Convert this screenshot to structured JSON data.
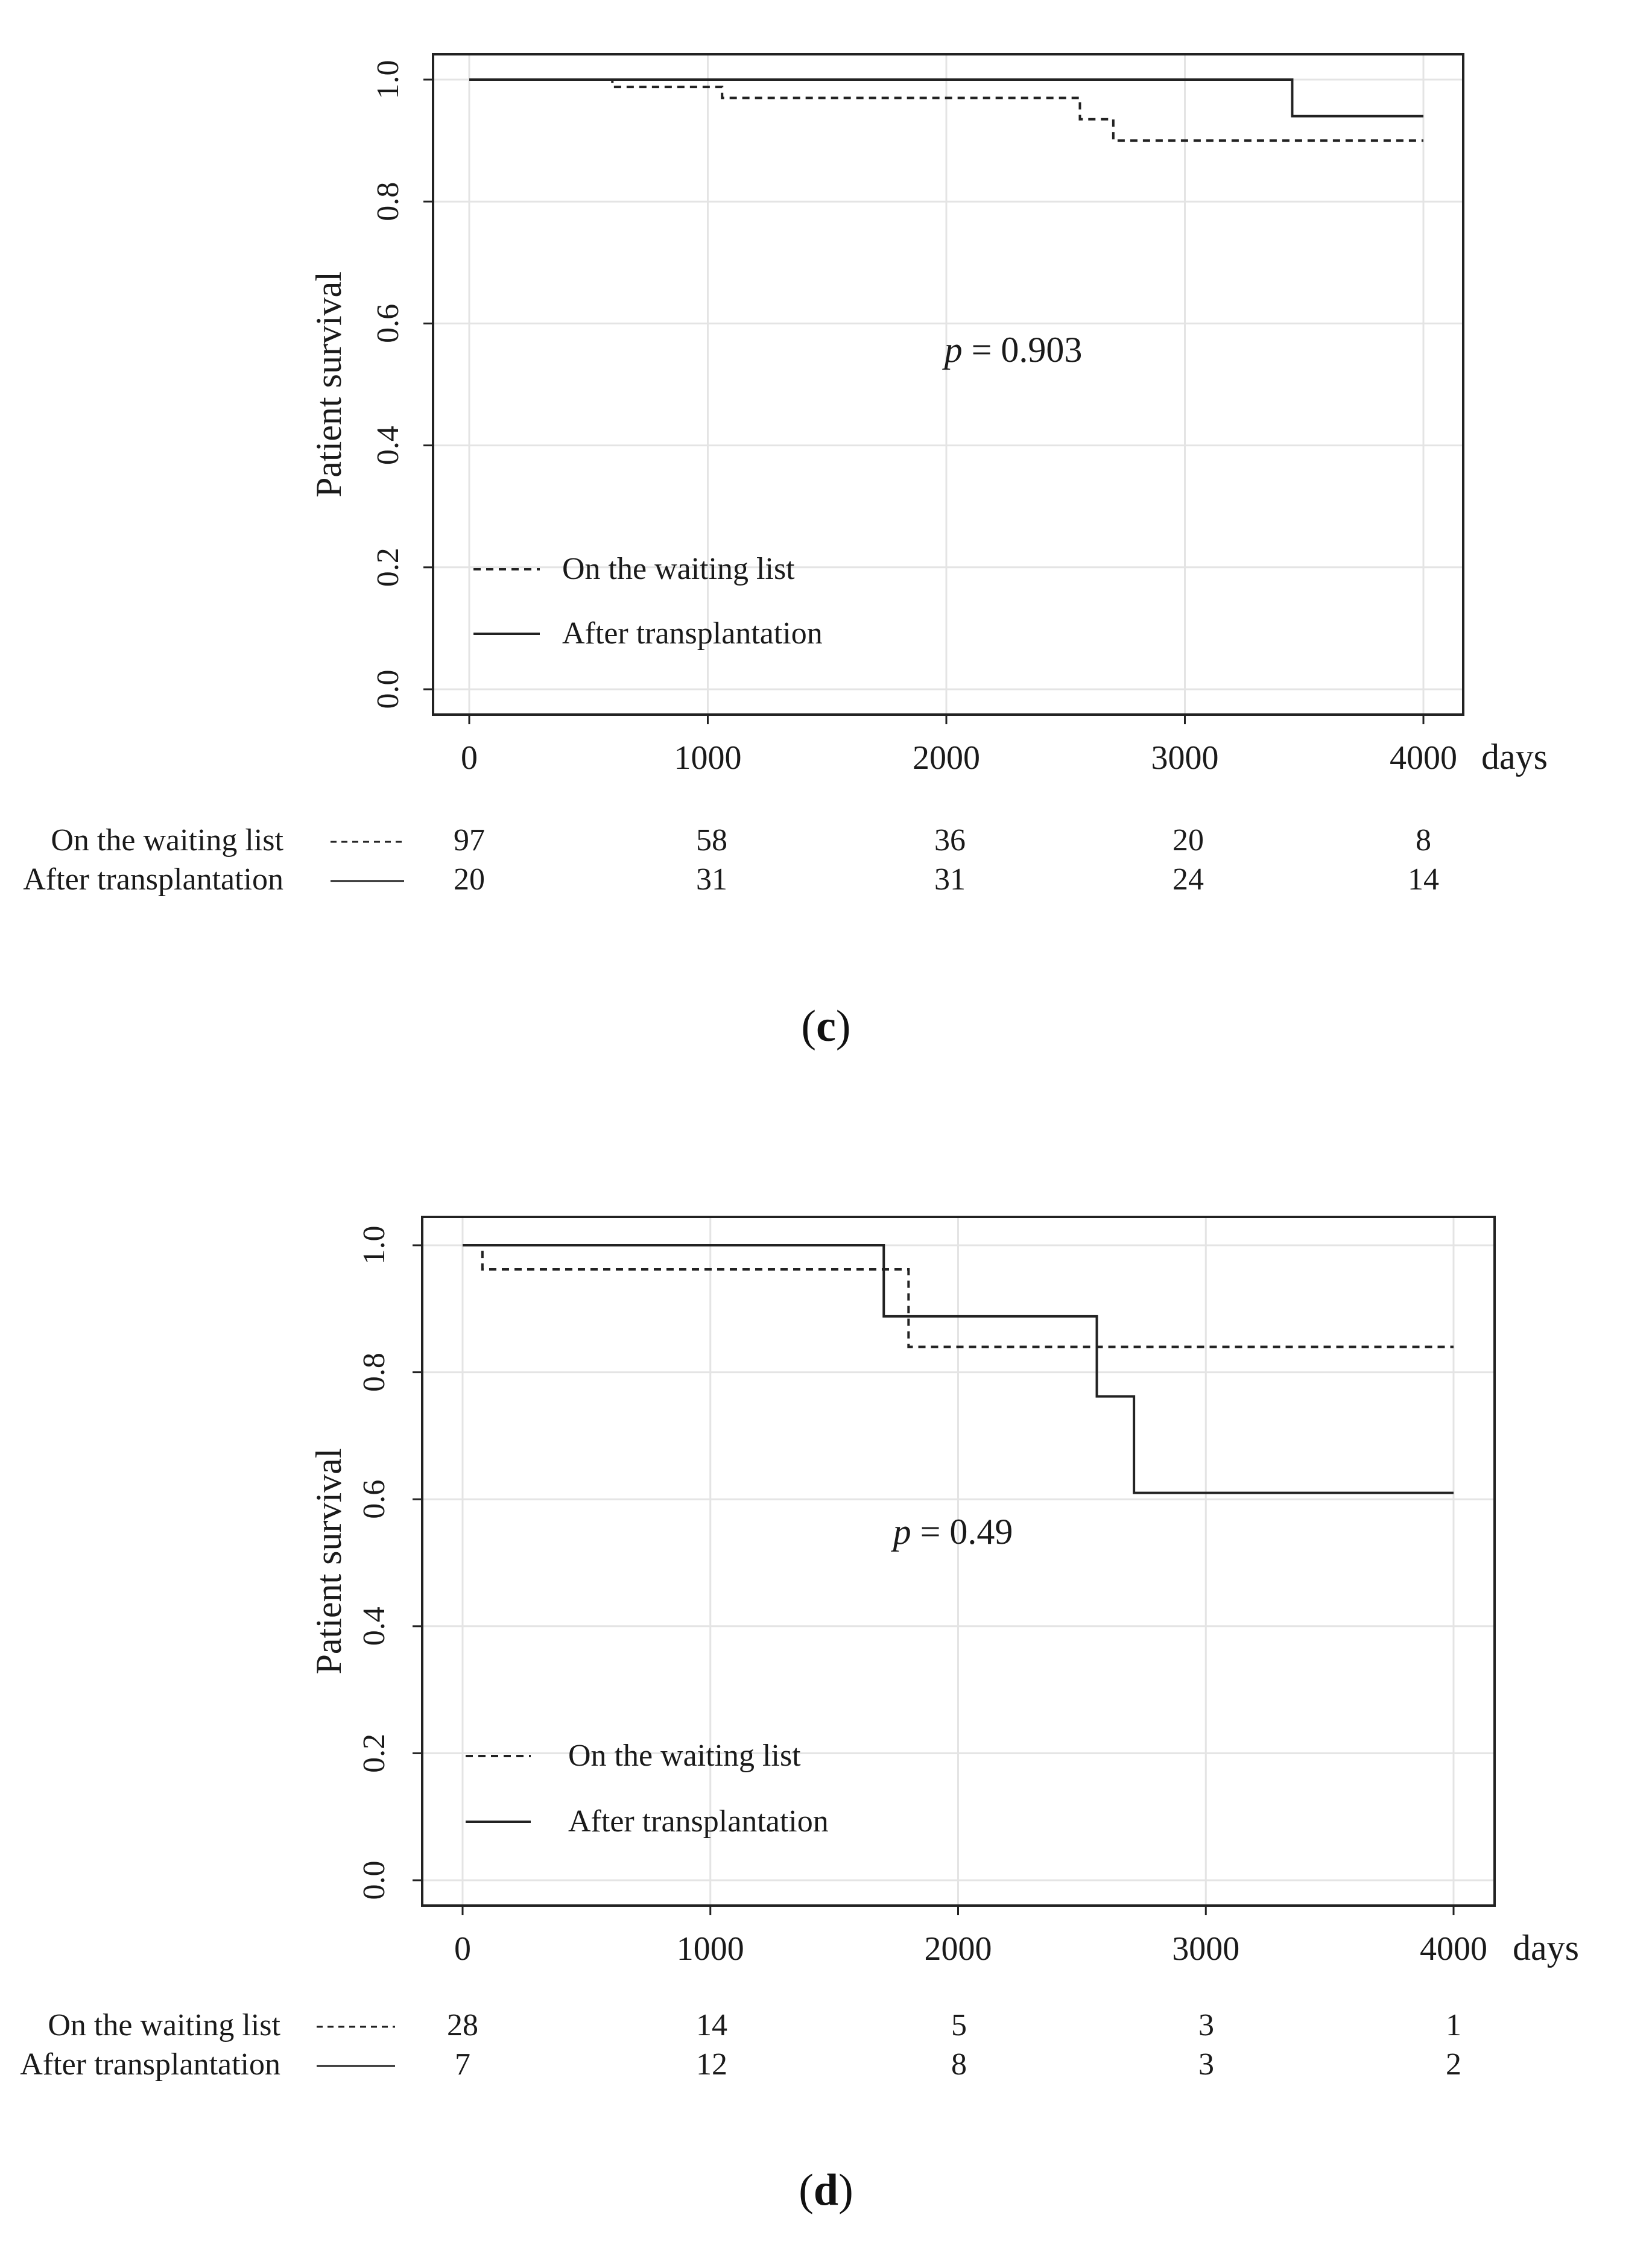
{
  "chart_data": [
    {
      "type": "line",
      "panel_label": "c",
      "xlabel": "days",
      "ylabel": "Patient survival",
      "xlim": [
        0,
        4000
      ],
      "ylim": [
        0,
        1.0
      ],
      "x_ticks": [
        0,
        1000,
        2000,
        3000,
        4000
      ],
      "y_ticks": [
        "0.0",
        "0.2",
        "0.4",
        "0.6",
        "0.8",
        "1.0"
      ],
      "grid": true,
      "legend_position": "bottom-left",
      "annotation": {
        "p_symbol": "p",
        "text": " = 0.903"
      },
      "series": [
        {
          "name": "On the waiting list",
          "style": "dashed",
          "steps": [
            [
              0,
              1.0
            ],
            [
              600,
              0.988
            ],
            [
              1060,
              0.97
            ],
            [
              2560,
              0.935
            ],
            [
              2700,
              0.9
            ],
            [
              4000,
              0.9
            ]
          ]
        },
        {
          "name": "After transplantation",
          "style": "solid",
          "steps": [
            [
              0,
              1.0
            ],
            [
              3450,
              0.94
            ],
            [
              4000,
              0.94
            ]
          ]
        }
      ],
      "risk_table": {
        "times": [
          0,
          1000,
          2000,
          3000,
          4000
        ],
        "rows": [
          {
            "label": "On the waiting list",
            "style": "dashed",
            "values": [
              "97",
              "58",
              "36",
              "20",
              "8"
            ]
          },
          {
            "label": "After transplantation",
            "style": "solid",
            "values": [
              "20",
              "31",
              "31",
              "24",
              "14"
            ]
          }
        ]
      }
    },
    {
      "type": "line",
      "panel_label": "d",
      "xlabel": "days",
      "ylabel": "Patient survival",
      "xlim": [
        0,
        4000
      ],
      "ylim": [
        0,
        1.0
      ],
      "x_ticks": [
        0,
        1000,
        2000,
        3000,
        4000
      ],
      "y_ticks": [
        "0.0",
        "0.2",
        "0.4",
        "0.6",
        "0.8",
        "1.0"
      ],
      "grid": true,
      "legend_position": "bottom-left",
      "annotation": {
        "p_symbol": "p",
        "text": " = 0.49"
      },
      "series": [
        {
          "name": "On the waiting list",
          "style": "dashed",
          "steps": [
            [
              0,
              1.0
            ],
            [
              80,
              0.962
            ],
            [
              1800,
              0.84
            ],
            [
              4000,
              0.84
            ]
          ]
        },
        {
          "name": "After transplantation",
          "style": "solid",
          "steps": [
            [
              0,
              1.0
            ],
            [
              1700,
              0.888
            ],
            [
              2560,
              0.762
            ],
            [
              2710,
              0.61
            ],
            [
              4000,
              0.61
            ]
          ]
        }
      ],
      "risk_table": {
        "times": [
          0,
          1000,
          2000,
          3000,
          4000
        ],
        "rows": [
          {
            "label": "On the waiting list",
            "style": "dashed",
            "values": [
              "28",
              "14",
              "5",
              "3",
              "1"
            ]
          },
          {
            "label": "After transplantation",
            "style": "solid",
            "values": [
              "7",
              "12",
              "8",
              "3",
              "2"
            ]
          }
        ]
      }
    }
  ]
}
